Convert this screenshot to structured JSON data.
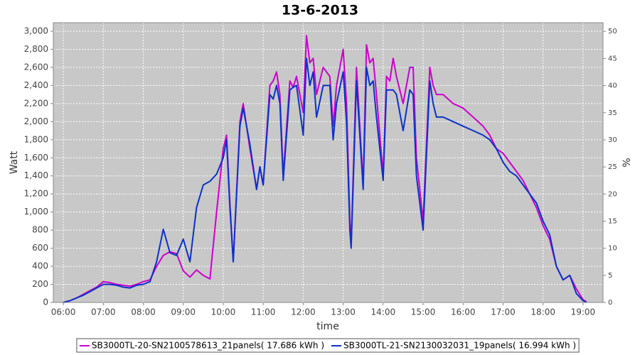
{
  "chart_data": {
    "type": "line",
    "title": "13-6-2013",
    "x_label": "time",
    "y_label": "Watt",
    "y2_label": "%",
    "x": [
      "06:00",
      "06:10",
      "06:20",
      "06:30",
      "06:40",
      "06:50",
      "07:00",
      "07:10",
      "07:20",
      "07:30",
      "07:40",
      "07:50",
      "08:00",
      "08:10",
      "08:20",
      "08:30",
      "08:40",
      "08:50",
      "09:00",
      "09:10",
      "09:20",
      "09:30",
      "09:40",
      "09:50",
      "10:00",
      "10:05",
      "10:10",
      "10:15",
      "10:25",
      "10:30",
      "10:40",
      "10:50",
      "10:55",
      "11:00",
      "11:10",
      "11:15",
      "11:20",
      "11:25",
      "11:30",
      "11:40",
      "11:45",
      "11:50",
      "12:00",
      "12:05",
      "12:10",
      "12:15",
      "12:20",
      "12:30",
      "12:40",
      "12:45",
      "12:50",
      "13:00",
      "13:05",
      "13:10",
      "13:12",
      "13:20",
      "13:30",
      "13:35",
      "13:40",
      "13:45",
      "13:50",
      "14:00",
      "14:05",
      "14:10",
      "14:15",
      "14:20",
      "14:30",
      "14:40",
      "14:45",
      "14:50",
      "15:00",
      "15:10",
      "15:15",
      "15:20",
      "15:30",
      "15:45",
      "16:00",
      "16:15",
      "16:30",
      "16:40",
      "16:50",
      "17:00",
      "17:10",
      "17:20",
      "17:30",
      "17:40",
      "17:50",
      "18:00",
      "18:10",
      "18:20",
      "18:30",
      "18:40",
      "18:50",
      "19:00",
      "19:05"
    ],
    "series": [
      {
        "name": "SB3000TL-20-SN2100578613_21panels( 17.686 kWh )",
        "color": "#cc00cc",
        "values": [
          0,
          20,
          50,
          90,
          130,
          170,
          230,
          220,
          200,
          190,
          180,
          200,
          230,
          250,
          400,
          520,
          560,
          540,
          350,
          280,
          360,
          300,
          260,
          1000,
          1700,
          1850,
          1100,
          450,
          2000,
          2200,
          1700,
          1250,
          1500,
          1300,
          2400,
          2450,
          2550,
          2300,
          1400,
          2450,
          2380,
          2500,
          2100,
          2950,
          2650,
          2700,
          2300,
          2600,
          2500,
          1950,
          2400,
          2800,
          2200,
          900,
          650,
          2600,
          1300,
          2850,
          2650,
          2700,
          2300,
          1400,
          2500,
          2450,
          2700,
          2500,
          2200,
          2600,
          2600,
          1600,
          900,
          2600,
          2400,
          2300,
          2300,
          2200,
          2150,
          2050,
          1950,
          1850,
          1700,
          1650,
          1550,
          1450,
          1350,
          1200,
          1050,
          850,
          700,
          400,
          250,
          300,
          150,
          30,
          10
        ]
      },
      {
        "name": "SB3000TL-21-SN2130032031_19panels( 16.994 kWh )",
        "color": "#0a32c8",
        "values": [
          0,
          20,
          50,
          80,
          120,
          160,
          200,
          200,
          190,
          170,
          160,
          190,
          200,
          230,
          450,
          810,
          550,
          520,
          700,
          450,
          1050,
          1300,
          1340,
          1420,
          1600,
          1800,
          1050,
          450,
          1950,
          2150,
          1750,
          1250,
          1500,
          1300,
          2300,
          2250,
          2400,
          2200,
          1350,
          2350,
          2380,
          2400,
          1850,
          2700,
          2400,
          2550,
          2050,
          2400,
          2400,
          1800,
          2200,
          2550,
          2000,
          800,
          600,
          2450,
          1250,
          2600,
          2400,
          2450,
          2050,
          1350,
          2350,
          2350,
          2350,
          2300,
          1900,
          2350,
          2300,
          1400,
          800,
          2450,
          2200,
          2050,
          2050,
          2000,
          1950,
          1900,
          1850,
          1800,
          1700,
          1550,
          1450,
          1400,
          1300,
          1200,
          1100,
          900,
          750,
          400,
          250,
          300,
          100,
          20,
          0
        ]
      }
    ],
    "xlim": [
      "05:45",
      "19:30"
    ],
    "xticks": [
      "06:00",
      "07:00",
      "08:00",
      "09:00",
      "10:00",
      "11:00",
      "12:00",
      "13:00",
      "14:00",
      "15:00",
      "16:00",
      "17:00",
      "18:00",
      "19:00"
    ],
    "ylim": [
      0,
      3094
    ],
    "yticks": [
      0,
      200,
      400,
      600,
      800,
      {
        "value": 1000,
        "label": "1,000"
      },
      {
        "value": 1200,
        "label": "1,200"
      },
      {
        "value": 1400,
        "label": "1,400"
      },
      {
        "value": 1600,
        "label": "1,600"
      },
      {
        "value": 1800,
        "label": "1,800"
      },
      {
        "value": 2000,
        "label": "2,000"
      },
      {
        "value": 2200,
        "label": "2,200"
      },
      {
        "value": 2400,
        "label": "2,400"
      },
      {
        "value": 2600,
        "label": "2,600"
      },
      {
        "value": 2800,
        "label": "2,800"
      },
      {
        "value": 3000,
        "label": "3,000"
      }
    ],
    "y2lim": [
      0,
      51.6
    ],
    "y2ticks": [
      0,
      5,
      10,
      15,
      20,
      25,
      30,
      35,
      40,
      45,
      50
    ],
    "grid": true,
    "legend": "bottom"
  }
}
